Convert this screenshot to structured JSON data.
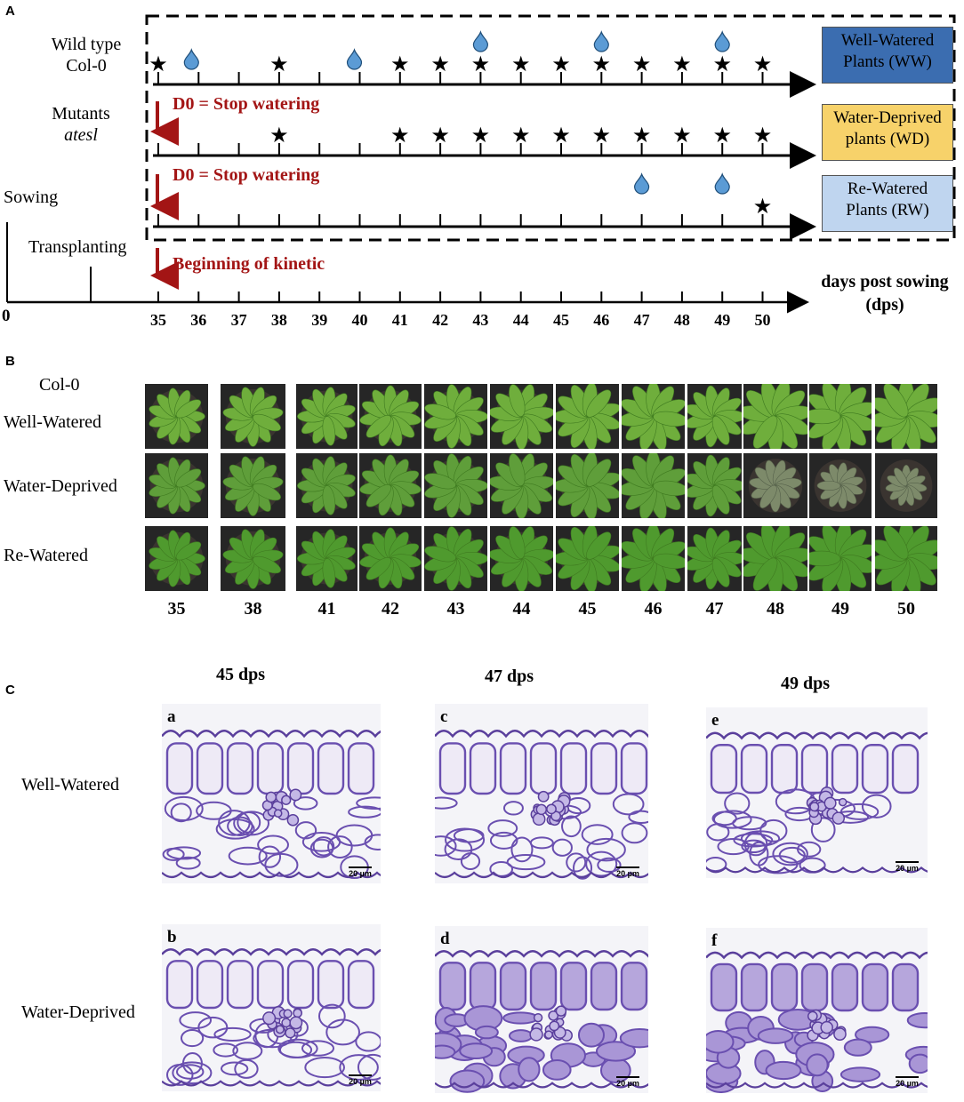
{
  "panel_a": {
    "letter": "A",
    "genotypes": {
      "wild_type_line1": "Wild type",
      "wild_type_line2": "Col-0",
      "mutants_line1": "Mutants",
      "mutants_line2": "atesl"
    },
    "stop_watering_label": "D0 = Stop watering",
    "beginning_label": "Beginning of kinetic",
    "sowing_label": "Sowing",
    "transplanting_label": "Transplanting",
    "origin_label": "0",
    "axis_label_line1": "days post sowing",
    "axis_label_line2": "(dps)",
    "day_ticks": [
      "35",
      "36",
      "37",
      "38",
      "39",
      "40",
      "41",
      "42",
      "43",
      "44",
      "45",
      "46",
      "47",
      "48",
      "49",
      "50"
    ],
    "treatment_boxes": [
      {
        "line1": "Well-Watered",
        "line2": "Plants (WW)",
        "color": "#3b6db0",
        "text_color": "#000000"
      },
      {
        "line1": "Water-Deprived",
        "line2": "plants (WD)",
        "color": "#f7d26a",
        "text_color": "#000000"
      },
      {
        "line1": "Re-Watered",
        "line2": "Plants (RW)",
        "color": "#bfd5ef",
        "text_color": "#000000"
      }
    ],
    "timelines": [
      {
        "stars": [
          35,
          38,
          41,
          42,
          43,
          44,
          45,
          46,
          47,
          48,
          49,
          50
        ],
        "drops": [
          36,
          40,
          43,
          46,
          49
        ]
      },
      {
        "stars": [
          38,
          41,
          42,
          43,
          44,
          45,
          46,
          47,
          48,
          49,
          50
        ],
        "drops": []
      },
      {
        "stars": [
          50
        ],
        "drops": [
          47,
          49
        ]
      }
    ],
    "colors": {
      "arrow_red": "#a31515",
      "drop_blue": "#5b9bd5"
    }
  },
  "panel_b": {
    "letter": "B",
    "genotype": "Col-0",
    "rows": [
      "Well-Watered",
      "Water-Deprived",
      "Re-Watered"
    ],
    "days": [
      "35",
      "38",
      "41",
      "42",
      "43",
      "44",
      "45",
      "46",
      "47",
      "48",
      "49",
      "50"
    ]
  },
  "panel_c": {
    "letter": "C",
    "columns": [
      "45 dps",
      "47 dps",
      "49 dps"
    ],
    "rows": [
      "Well-Watered",
      "Water-Deprived"
    ],
    "images": [
      {
        "letter": "a",
        "scale": "20 µm"
      },
      {
        "letter": "c",
        "scale": "20 µm"
      },
      {
        "letter": "e",
        "scale": "20 µm"
      },
      {
        "letter": "b",
        "scale": "20 µm"
      },
      {
        "letter": "d",
        "scale": "20 µm"
      },
      {
        "letter": "f",
        "scale": "20 µm"
      }
    ]
  }
}
